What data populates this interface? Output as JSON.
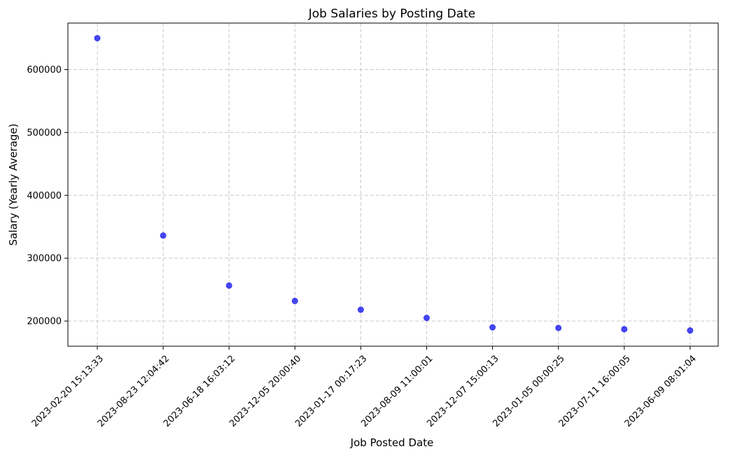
{
  "chart_data": {
    "type": "scatter",
    "title": "Job Salaries by Posting Date",
    "xlabel": "Job Posted Date",
    "ylabel": "Salary (Yearly Average)",
    "categories": [
      "2023-02-20 15:13:33",
      "2023-08-23 12:04:42",
      "2023-06-18 16:03:12",
      "2023-12-05 20:00:40",
      "2023-01-17 00:17:23",
      "2023-08-09 11:00:01",
      "2023-12-07 15:00:13",
      "2023-01-05 00:00:25",
      "2023-07-11 16:00:05",
      "2023-06-09 08:01:04"
    ],
    "values": [
      650000,
      336000,
      256500,
      232000,
      218000,
      205000,
      190000,
      189000,
      187000,
      185000
    ],
    "yticks": [
      200000,
      300000,
      400000,
      500000,
      600000
    ],
    "ylim": [
      160000,
      674000
    ],
    "grid": true,
    "point_color": "#0000ee",
    "grid_color": "#c8c8c8"
  }
}
